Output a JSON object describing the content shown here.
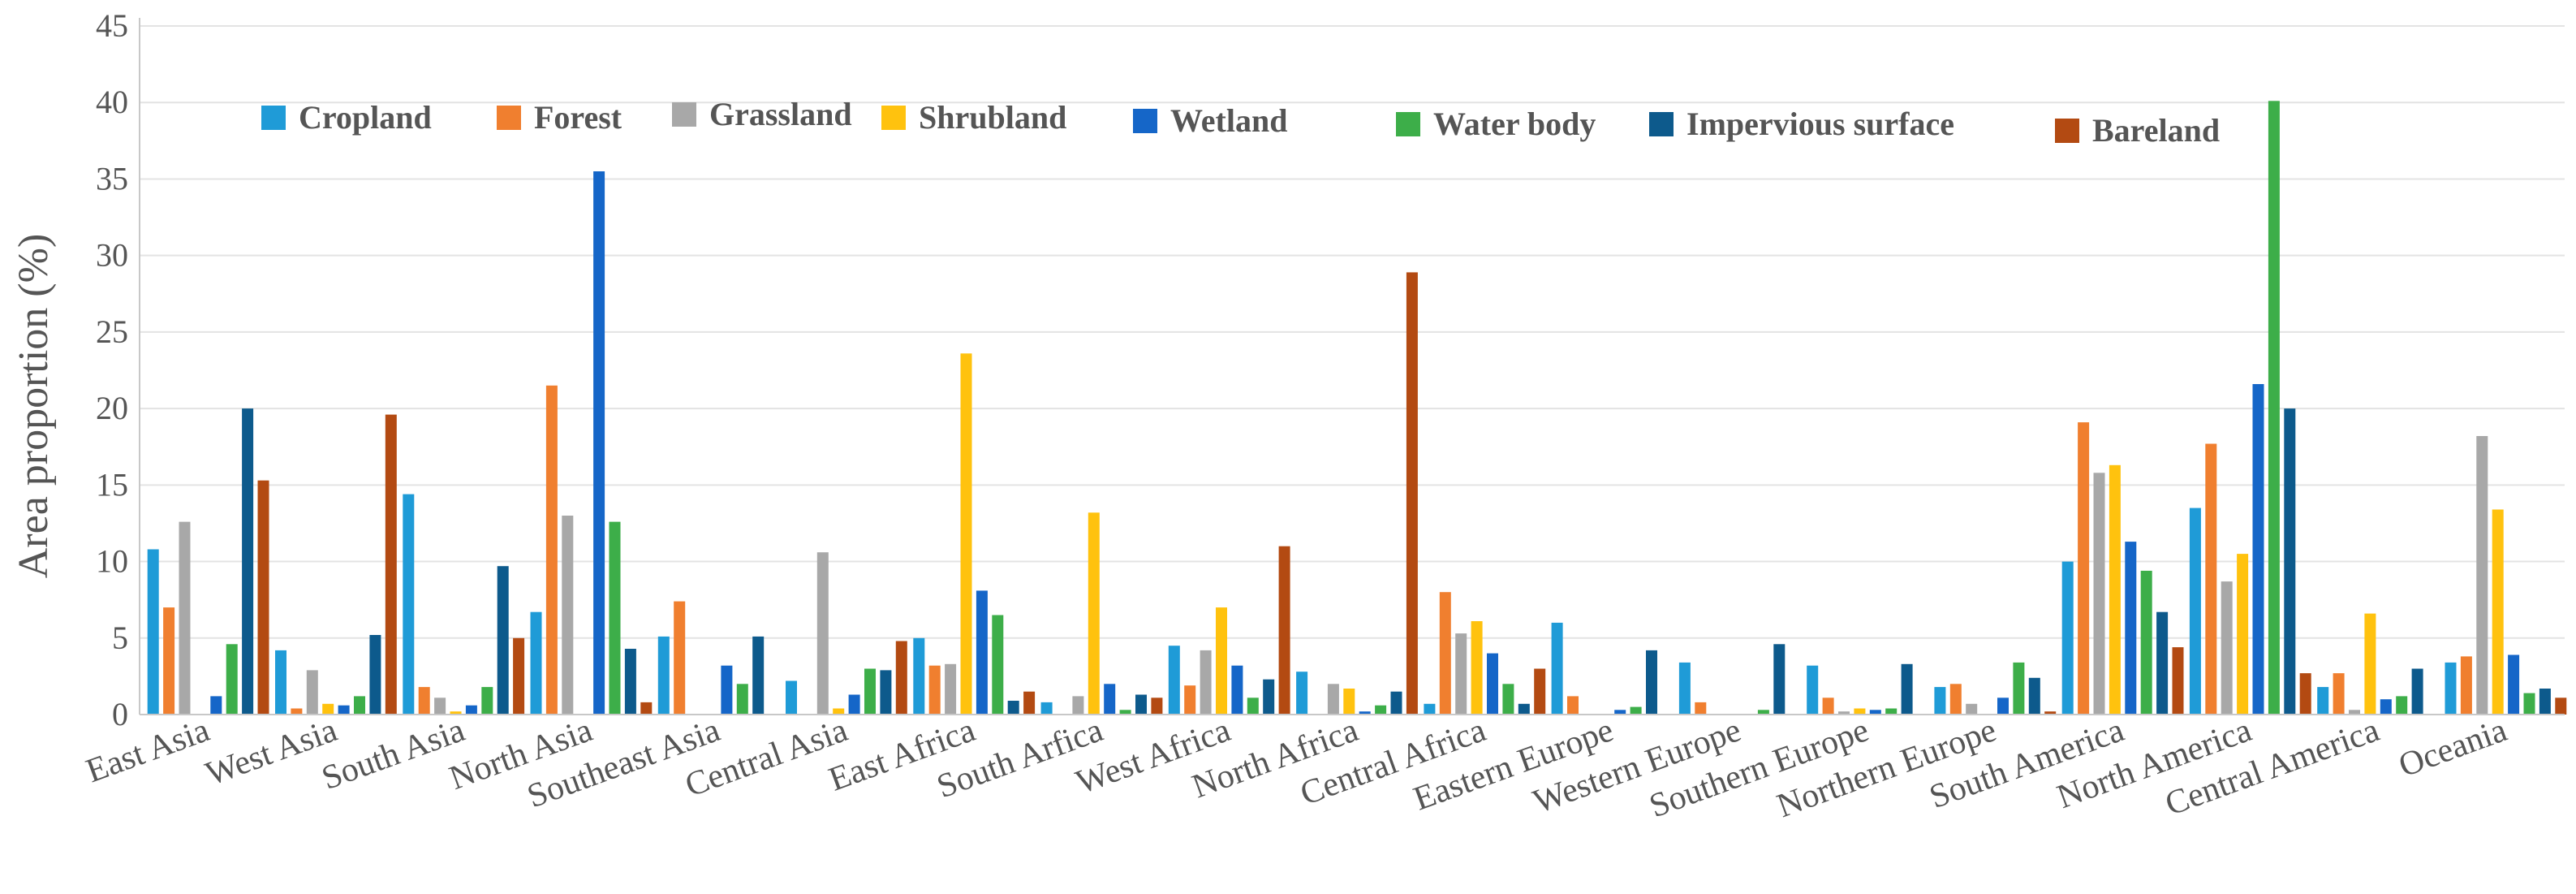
{
  "chart_data": {
    "type": "bar",
    "title": "",
    "xlabel": "",
    "ylabel": "Area proportion (%)",
    "ylim": [
      0,
      45
    ],
    "yticks": [
      0,
      5,
      10,
      15,
      20,
      25,
      30,
      35,
      40,
      45
    ],
    "grid": "horizontal",
    "legend_position": "top",
    "categories": [
      "East Asia",
      "West Asia",
      "South Asia",
      "North Asia",
      "Southeast Asia",
      "Central Asia",
      "East Africa",
      "South Arfica",
      "West Africa",
      "North Africa",
      "Central Africa",
      "Eastern Europe",
      "Western Europe",
      "Southern Europe",
      "Northern Europe",
      "South America",
      "North America",
      "Central America",
      "Oceania"
    ],
    "series": [
      {
        "name": "Cropland",
        "color": "#1f9bd7",
        "values": [
          10.8,
          4.2,
          14.4,
          6.7,
          5.1,
          2.2,
          5.0,
          0.8,
          4.5,
          2.8,
          0.7,
          6.0,
          3.4,
          3.2,
          1.8,
          10.0,
          13.5,
          1.8,
          3.4
        ]
      },
      {
        "name": "Forest",
        "color": "#f07f2f",
        "values": [
          7.0,
          0.4,
          1.8,
          21.5,
          7.4,
          0.0,
          3.2,
          0.0,
          1.9,
          0.0,
          8.0,
          1.2,
          0.8,
          1.1,
          2.0,
          19.1,
          17.7,
          2.7,
          3.8
        ]
      },
      {
        "name": "Grassland",
        "color": "#a8a8a8",
        "values": [
          12.6,
          2.9,
          1.1,
          13.0,
          0.0,
          10.6,
          3.3,
          1.2,
          4.2,
          2.0,
          5.3,
          0.0,
          0.0,
          0.2,
          0.7,
          15.8,
          8.7,
          0.3,
          18.2
        ]
      },
      {
        "name": "Shrubland",
        "color": "#ffc20e",
        "values": [
          0.0,
          0.7,
          0.2,
          0.0,
          0.0,
          0.4,
          23.6,
          13.2,
          7.0,
          1.7,
          6.1,
          0.0,
          0.0,
          0.4,
          0.0,
          16.3,
          10.5,
          6.6,
          13.4
        ]
      },
      {
        "name": "Wetland",
        "color": "#1566c8",
        "values": [
          1.2,
          0.6,
          0.6,
          35.5,
          3.2,
          1.3,
          8.1,
          2.0,
          3.2,
          0.2,
          4.0,
          0.3,
          0.0,
          0.3,
          1.1,
          11.3,
          21.6,
          1.0,
          3.9
        ]
      },
      {
        "name": "Water body",
        "color": "#3dae49",
        "values": [
          4.6,
          1.2,
          1.8,
          12.6,
          2.0,
          3.0,
          6.5,
          0.3,
          1.1,
          0.6,
          2.0,
          0.5,
          0.3,
          0.4,
          3.4,
          9.4,
          40.1,
          1.2,
          1.4
        ]
      },
      {
        "name": "Impervious surface",
        "color": "#0d5a8c",
        "values": [
          20.0,
          5.2,
          9.7,
          4.3,
          5.1,
          2.9,
          0.9,
          1.3,
          2.3,
          1.5,
          0.7,
          4.2,
          4.6,
          3.3,
          2.4,
          6.7,
          20.0,
          3.0,
          1.7
        ]
      },
      {
        "name": "Bareland",
        "color": "#b34a12",
        "values": [
          15.3,
          19.6,
          5.0,
          0.8,
          0.0,
          4.8,
          1.5,
          1.1,
          11.0,
          28.9,
          3.0,
          0.0,
          0.0,
          0.0,
          0.2,
          4.4,
          2.7,
          0.0,
          1.1
        ]
      }
    ]
  }
}
